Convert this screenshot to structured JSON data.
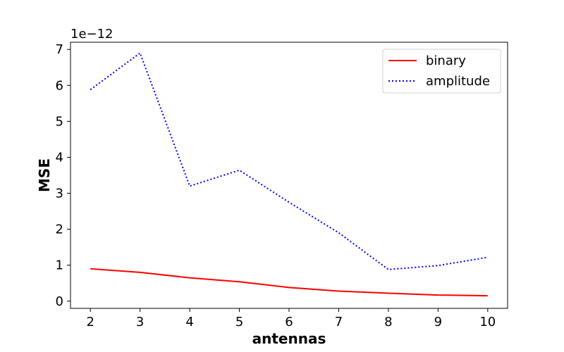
{
  "chart_data": {
    "type": "line",
    "title": "",
    "xlabel": "antennas",
    "ylabel": "MSE",
    "y_offset_label": "1e−12",
    "x": [
      2,
      3,
      4,
      5,
      6,
      7,
      8,
      9,
      10
    ],
    "xlim": [
      1.6,
      10.4
    ],
    "ylim": [
      -0.2,
      7.2
    ],
    "x_ticks": [
      "2",
      "3",
      "4",
      "5",
      "6",
      "7",
      "8",
      "9",
      "10"
    ],
    "y_ticks": [
      "0",
      "1",
      "2",
      "3",
      "4",
      "5",
      "6",
      "7"
    ],
    "grid": false,
    "legend_position": "upper right",
    "series": [
      {
        "name": "binary",
        "color": "#ff0000",
        "linestyle": "solid",
        "values": [
          0.9,
          0.8,
          0.65,
          0.54,
          0.38,
          0.28,
          0.22,
          0.17,
          0.15
        ]
      },
      {
        "name": "amplitude",
        "color": "#0000ff",
        "linestyle": "dotted",
        "values": [
          5.88,
          6.9,
          3.2,
          3.64,
          2.75,
          1.9,
          0.88,
          0.99,
          1.22
        ]
      }
    ]
  }
}
